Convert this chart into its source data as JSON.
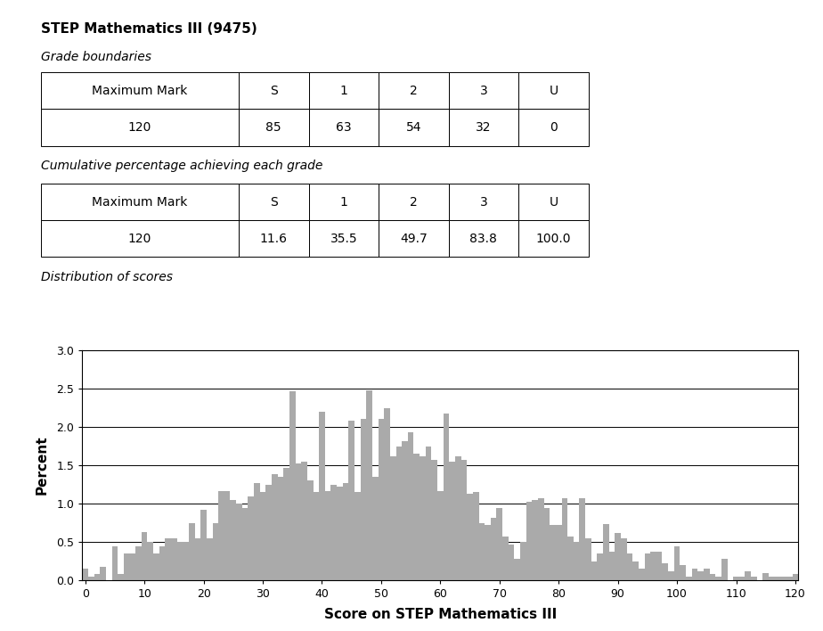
{
  "title": "STEP Mathematics III (9475)",
  "grade_boundaries_label": "Grade boundaries",
  "grade_boundaries_headers": [
    "Maximum Mark",
    "S",
    "1",
    "2",
    "3",
    "U"
  ],
  "grade_boundaries_values": [
    "120",
    "85",
    "63",
    "54",
    "32",
    "0"
  ],
  "cumulative_label": "Cumulative percentage achieving each grade",
  "cumulative_headers": [
    "Maximum Mark",
    "S",
    "1",
    "2",
    "3",
    "U"
  ],
  "cumulative_values": [
    "120",
    "11.6",
    "35.5",
    "49.7",
    "83.8",
    "100.0"
  ],
  "dist_label": "Distribution of scores",
  "xlabel": "Score on STEP Mathematics III",
  "ylabel": "Percent",
  "ylim": [
    0,
    3.0
  ],
  "xlim": [
    -0.5,
    120.5
  ],
  "yticks": [
    0.0,
    0.5,
    1.0,
    1.5,
    2.0,
    2.5,
    3.0
  ],
  "xticks": [
    0,
    10,
    20,
    30,
    40,
    50,
    60,
    70,
    80,
    90,
    100,
    110,
    120
  ],
  "bar_color": "#AAAAAA",
  "bar_values": [
    0.15,
    0.05,
    0.08,
    0.18,
    0.0,
    0.45,
    0.08,
    0.35,
    0.35,
    0.45,
    0.63,
    0.5,
    0.35,
    0.45,
    0.55,
    0.55,
    0.5,
    0.5,
    0.75,
    0.55,
    0.92,
    0.55,
    0.75,
    1.17,
    1.17,
    1.05,
    1.0,
    0.95,
    1.1,
    1.27,
    1.15,
    1.25,
    1.38,
    1.35,
    1.47,
    2.47,
    1.52,
    1.55,
    1.3,
    1.15,
    2.2,
    1.17,
    1.25,
    1.22,
    1.27,
    2.08,
    1.15,
    2.1,
    2.48,
    1.35,
    2.1,
    2.25,
    1.62,
    1.75,
    1.82,
    1.93,
    1.65,
    1.62,
    1.75,
    1.57,
    1.17,
    2.18,
    1.55,
    1.62,
    1.57,
    1.13,
    1.15,
    0.75,
    0.72,
    0.82,
    0.95,
    0.57,
    0.47,
    0.28,
    0.5,
    1.02,
    1.05,
    1.07,
    0.95,
    0.72,
    0.72,
    1.07,
    0.57,
    0.5,
    1.07,
    0.55,
    0.25,
    0.35,
    0.73,
    0.38,
    0.62,
    0.55,
    0.35,
    0.25,
    0.15,
    0.35,
    0.37,
    0.38,
    0.22,
    0.12,
    0.45,
    0.2,
    0.05,
    0.15,
    0.12,
    0.15,
    0.08,
    0.05,
    0.28,
    0.0,
    0.05,
    0.05,
    0.12,
    0.05,
    0.0,
    0.1,
    0.05,
    0.05,
    0.05,
    0.05,
    0.08
  ],
  "col_widths_norm": [
    0.24,
    0.085,
    0.085,
    0.085,
    0.085,
    0.085
  ],
  "table_font_size": 10,
  "title_font_size": 11,
  "label_font_size": 10
}
